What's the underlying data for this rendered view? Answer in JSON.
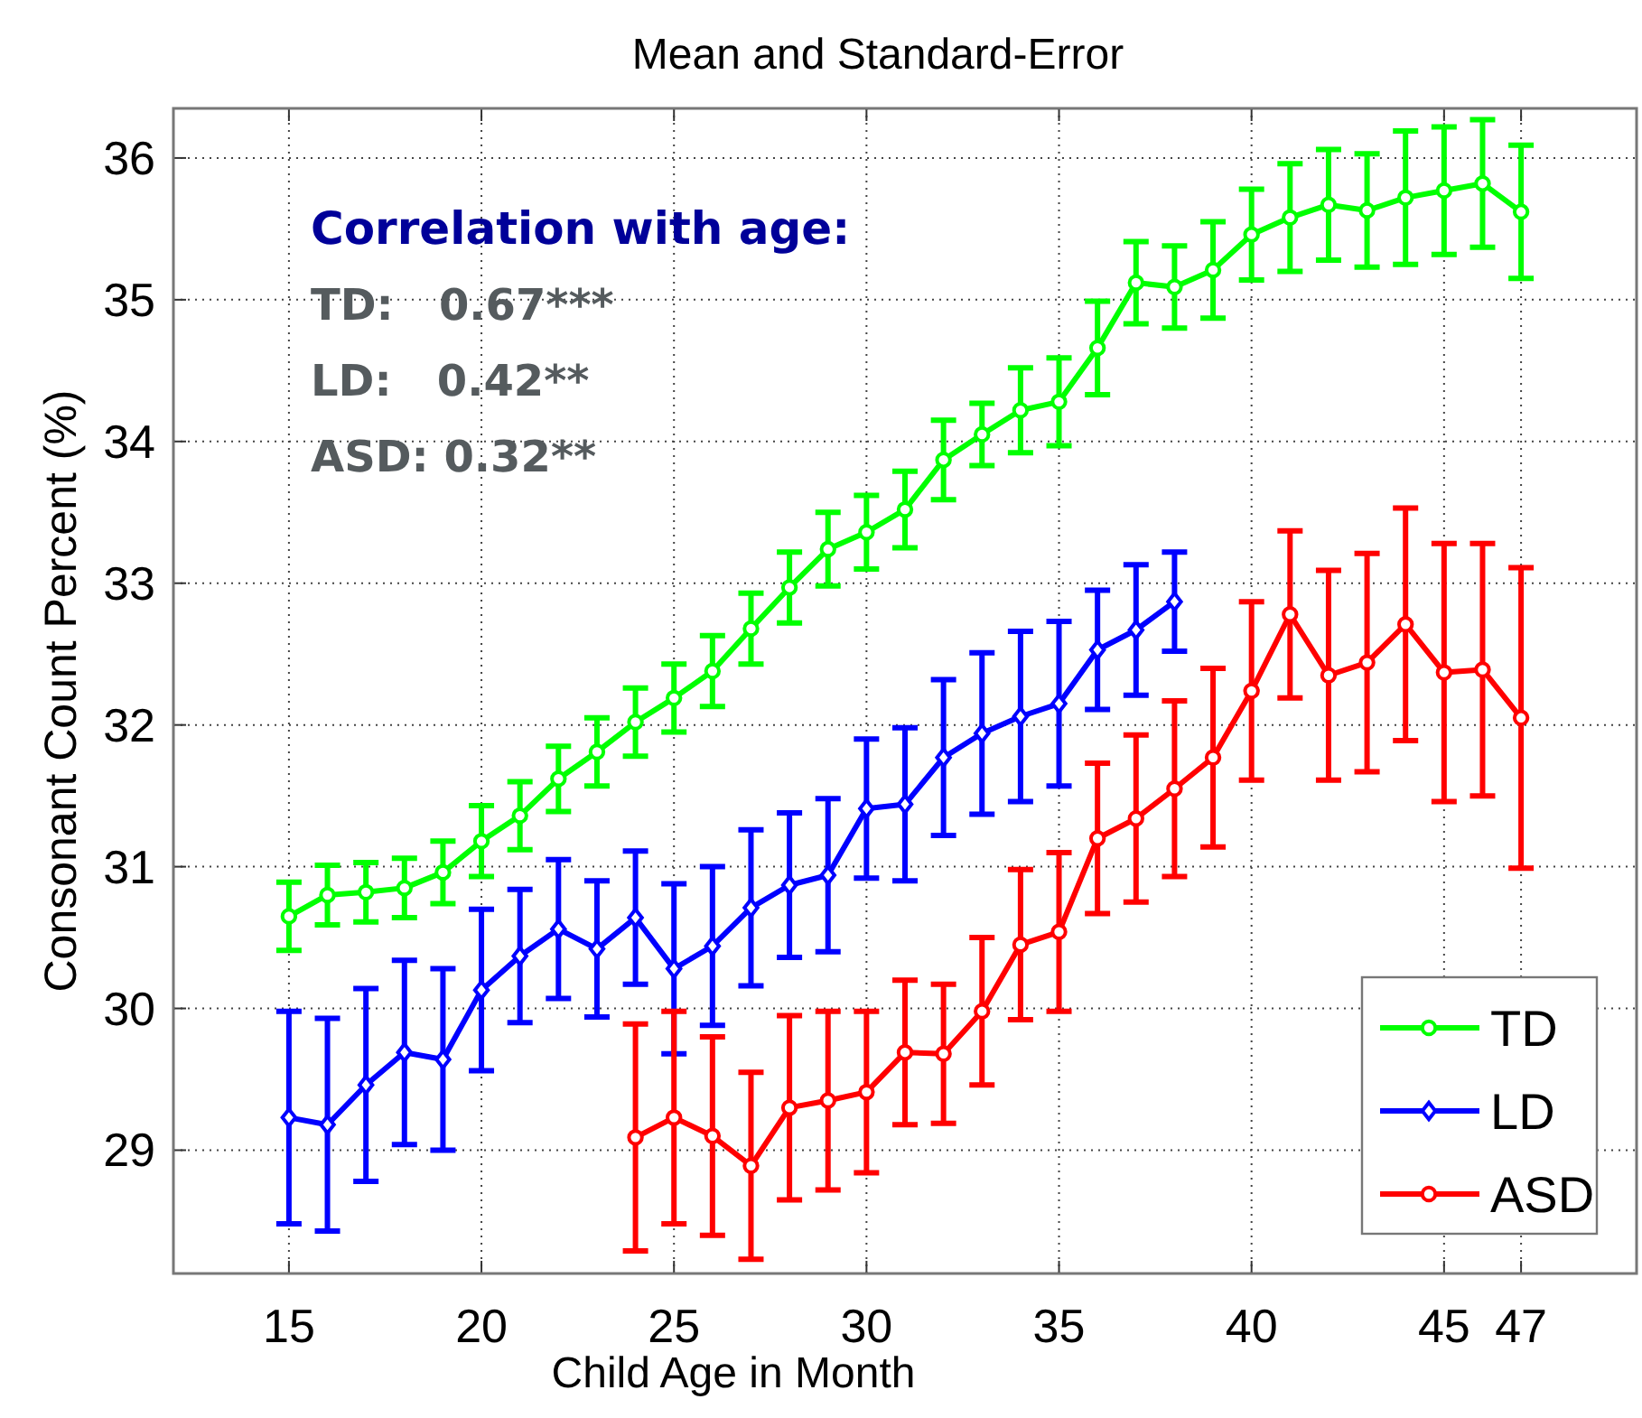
{
  "chart_data": {
    "type": "line",
    "title": "Mean and Standard-Error",
    "xlabel": "Child Age in Month",
    "ylabel": "Consonant Count Percent (%)",
    "annotations": [
      "Correlation with age:",
      "TD:   0.67***",
      "LD:   0.42**",
      "ASD: 0.32**"
    ],
    "xlim": [
      12,
      50
    ],
    "xticks": [
      15,
      20,
      25,
      30,
      35,
      40,
      45,
      47
    ],
    "ylim": [
      28.13,
      36.35
    ],
    "yticks": [
      29,
      30,
      31,
      32,
      33,
      34,
      35,
      36
    ],
    "grid": true,
    "legend": "bottom right",
    "line_style": "solid",
    "series": [
      {
        "name": "TD",
        "color": "#00ff00",
        "marker": "circle",
        "x": [
          15,
          16,
          17,
          18,
          19,
          20,
          21,
          22,
          23,
          24,
          25,
          26,
          27,
          28,
          29,
          30,
          31,
          32,
          33,
          34,
          35,
          36,
          37,
          38,
          39,
          40,
          41,
          42,
          43,
          44,
          45,
          46,
          47
        ],
        "values": [
          30.65,
          30.8,
          30.82,
          30.85,
          30.96,
          31.18,
          31.36,
          31.62,
          31.81,
          32.02,
          32.19,
          32.38,
          32.68,
          32.97,
          33.24,
          33.36,
          33.52,
          33.87,
          34.05,
          34.22,
          34.28,
          34.66,
          35.12,
          35.09,
          35.21,
          35.46,
          35.58,
          35.67,
          35.63,
          35.72,
          35.77,
          35.82,
          35.62
        ],
        "errors": [
          0.24,
          0.21,
          0.21,
          0.21,
          0.22,
          0.25,
          0.24,
          0.23,
          0.24,
          0.24,
          0.24,
          0.25,
          0.25,
          0.25,
          0.26,
          0.26,
          0.27,
          0.28,
          0.22,
          0.3,
          0.31,
          0.33,
          0.29,
          0.29,
          0.34,
          0.32,
          0.38,
          0.39,
          0.4,
          0.47,
          0.45,
          0.45,
          0.47
        ]
      },
      {
        "name": "LD",
        "color": "#0000ff",
        "marker": "diamond",
        "x": [
          15,
          16,
          17,
          18,
          19,
          20,
          21,
          22,
          23,
          24,
          25,
          26,
          27,
          28,
          29,
          30,
          31,
          32,
          33,
          34,
          35,
          36,
          37,
          38
        ],
        "values": [
          29.23,
          29.18,
          29.46,
          29.69,
          29.64,
          30.13,
          30.37,
          30.56,
          30.42,
          30.64,
          30.28,
          30.44,
          30.71,
          30.87,
          30.94,
          31.41,
          31.44,
          31.77,
          31.94,
          32.06,
          32.15,
          32.53,
          32.67,
          32.87
        ],
        "errors": [
          0.75,
          0.75,
          0.68,
          0.65,
          0.64,
          0.57,
          0.47,
          0.49,
          0.48,
          0.47,
          0.6,
          0.56,
          0.55,
          0.51,
          0.54,
          0.49,
          0.54,
          0.55,
          0.57,
          0.6,
          0.58,
          0.42,
          0.46,
          0.35
        ]
      },
      {
        "name": "ASD",
        "color": "#ff0000",
        "marker": "circle",
        "x": [
          24,
          25,
          26,
          27,
          28,
          29,
          30,
          31,
          32,
          33,
          34,
          35,
          36,
          37,
          38,
          39,
          40,
          41,
          42,
          43,
          44,
          45,
          46,
          47
        ],
        "values": [
          29.09,
          29.23,
          29.1,
          28.89,
          29.3,
          29.35,
          29.41,
          29.69,
          29.68,
          29.98,
          30.45,
          30.54,
          31.2,
          31.34,
          31.55,
          31.77,
          32.24,
          32.78,
          32.35,
          32.44,
          32.71,
          32.37,
          32.39,
          32.05
        ],
        "errors": [
          0.8,
          0.75,
          0.7,
          0.66,
          0.65,
          0.63,
          0.57,
          0.51,
          0.49,
          0.52,
          0.53,
          0.56,
          0.53,
          0.59,
          0.62,
          0.63,
          0.63,
          0.59,
          0.74,
          0.77,
          0.82,
          0.91,
          0.89,
          1.06
        ]
      }
    ]
  }
}
